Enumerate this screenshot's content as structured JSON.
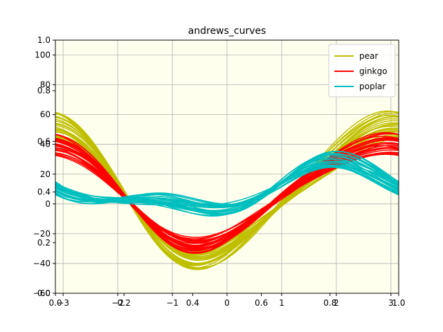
{
  "chart_data": {
    "type": "line",
    "title": "andrews_curves",
    "xlabel": "",
    "ylabel": "",
    "xlim": [
      -3.14159,
      3.14159
    ],
    "ylim": [
      -60,
      110
    ],
    "xticks": [
      -3,
      -2,
      -1,
      0,
      1,
      2,
      3
    ],
    "yticks": [
      -60,
      -40,
      -20,
      0,
      20,
      40,
      60,
      80,
      100
    ],
    "overlay_axis": {
      "xlim": [
        0,
        1
      ],
      "ylim": [
        0,
        1
      ],
      "xticks": [
        "0.0",
        "0.2",
        "0.4",
        "0.6",
        "0.8",
        "1.0"
      ],
      "yticks": [
        "0.0",
        "0.2",
        "0.4",
        "0.6",
        "0.8",
        "1.0"
      ]
    },
    "grid": true,
    "background": "#ffffee",
    "legend_position": "top-right",
    "series": [
      {
        "name": "pear",
        "color": "#bfbf00",
        "coef_a": [
          8,
          14
        ],
        "coef_b": [
          11,
          18
        ],
        "coef_c": [
          -49,
          -35
        ],
        "coef_d": [
          3,
          6
        ],
        "coef_e": [
          2,
          4
        ],
        "count": 26
      },
      {
        "name": "ginkgo",
        "color": "#ff0000",
        "coef_a": [
          9,
          13
        ],
        "coef_b": [
          11,
          16
        ],
        "coef_c": [
          -36,
          -25
        ],
        "coef_d": [
          2,
          5
        ],
        "coef_e": [
          0,
          2
        ],
        "count": 26
      },
      {
        "name": "poplar",
        "color": "#00bfbf",
        "coef_a": [
          12,
          14
        ],
        "coef_b": [
          8,
          15
        ],
        "coef_c": [
          -11,
          -3
        ],
        "coef_d": [
          -5,
          -2
        ],
        "coef_e": [
          -7,
          -2
        ],
        "count": 26
      }
    ]
  }
}
